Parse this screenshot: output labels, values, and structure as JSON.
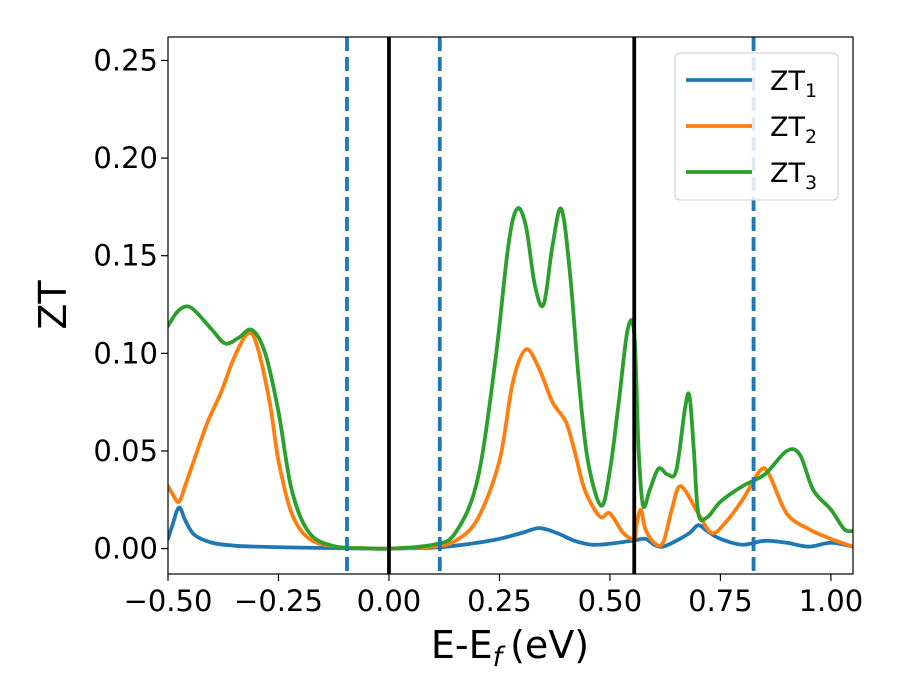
{
  "chart_data": {
    "type": "line",
    "title": "",
    "xlabel": "E-E",
    "xlabel_sub": "f",
    "xlabel_unit": "(eV)",
    "ylabel": "ZT",
    "xlim": [
      -0.5,
      1.05
    ],
    "ylim": [
      -0.013,
      0.262
    ],
    "xticks": [
      -0.5,
      -0.25,
      0.0,
      0.25,
      0.5,
      0.75,
      1.0
    ],
    "xtick_labels": [
      "−0.50",
      "−0.25",
      "0.00",
      "0.25",
      "0.50",
      "0.75",
      "1.00"
    ],
    "yticks": [
      0.0,
      0.05,
      0.1,
      0.15,
      0.2,
      0.25
    ],
    "ytick_labels": [
      "0.00",
      "0.05",
      "0.10",
      "0.15",
      "0.20",
      "0.25"
    ],
    "grid": false,
    "legend_position": "upper right",
    "vertical_lines": [
      {
        "x": -0.095,
        "style": "dashed",
        "color": "#1f77b4"
      },
      {
        "x": 0.0,
        "style": "solid",
        "color": "#000000"
      },
      {
        "x": 0.115,
        "style": "dashed",
        "color": "#1f77b4"
      },
      {
        "x": 0.555,
        "style": "solid",
        "color": "#000000"
      },
      {
        "x": 0.825,
        "style": "dashed",
        "color": "#1f77b4"
      }
    ],
    "series": [
      {
        "name": "ZT",
        "name_sub": "1",
        "color": "#1f77b4",
        "x": [
          -0.5,
          -0.49,
          -0.475,
          -0.46,
          -0.44,
          -0.4,
          -0.35,
          -0.3,
          -0.2,
          -0.1,
          0.0,
          0.1,
          0.15,
          0.2,
          0.25,
          0.3,
          0.34,
          0.38,
          0.42,
          0.46,
          0.5,
          0.55,
          0.58,
          0.6,
          0.62,
          0.65,
          0.68,
          0.7,
          0.72,
          0.75,
          0.8,
          0.85,
          0.9,
          0.95,
          1.0,
          1.05
        ],
        "y": [
          0.005,
          0.012,
          0.021,
          0.014,
          0.007,
          0.003,
          0.0015,
          0.001,
          0.0005,
          0.0002,
          0.0,
          0.0005,
          0.0015,
          0.003,
          0.005,
          0.008,
          0.0105,
          0.008,
          0.004,
          0.002,
          0.0025,
          0.004,
          0.005,
          0.002,
          0.001,
          0.004,
          0.008,
          0.012,
          0.009,
          0.005,
          0.002,
          0.004,
          0.003,
          0.001,
          0.003,
          0.001
        ]
      },
      {
        "name": "ZT",
        "name_sub": "2",
        "color": "#ff7f0e",
        "x": [
          -0.5,
          -0.49,
          -0.475,
          -0.46,
          -0.44,
          -0.41,
          -0.38,
          -0.35,
          -0.32,
          -0.3,
          -0.27,
          -0.25,
          -0.22,
          -0.18,
          -0.12,
          -0.05,
          0.0,
          0.1,
          0.15,
          0.2,
          0.25,
          0.28,
          0.31,
          0.34,
          0.37,
          0.4,
          0.42,
          0.44,
          0.46,
          0.48,
          0.5,
          0.53,
          0.555,
          0.56,
          0.57,
          0.58,
          0.6,
          0.62,
          0.64,
          0.66,
          0.7,
          0.73,
          0.76,
          0.8,
          0.84,
          0.86,
          0.9,
          0.95,
          1.0,
          1.05
        ],
        "y": [
          0.032,
          0.028,
          0.024,
          0.033,
          0.046,
          0.065,
          0.08,
          0.098,
          0.11,
          0.105,
          0.075,
          0.045,
          0.018,
          0.005,
          0.001,
          0.0002,
          0.0,
          0.001,
          0.004,
          0.015,
          0.045,
          0.085,
          0.102,
          0.092,
          0.075,
          0.065,
          0.05,
          0.032,
          0.022,
          0.016,
          0.018,
          0.008,
          0.005,
          0.012,
          0.02,
          0.01,
          0.003,
          0.003,
          0.02,
          0.032,
          0.018,
          0.008,
          0.013,
          0.025,
          0.04,
          0.038,
          0.018,
          0.01,
          0.005,
          0.001
        ]
      },
      {
        "name": "ZT",
        "name_sub": "3",
        "color": "#2ca02c",
        "x": [
          -0.5,
          -0.48,
          -0.46,
          -0.44,
          -0.4,
          -0.37,
          -0.34,
          -0.31,
          -0.28,
          -0.25,
          -0.22,
          -0.18,
          -0.12,
          -0.05,
          0.0,
          0.1,
          0.15,
          0.2,
          0.24,
          0.27,
          0.29,
          0.31,
          0.33,
          0.35,
          0.37,
          0.39,
          0.41,
          0.43,
          0.45,
          0.48,
          0.5,
          0.52,
          0.54,
          0.555,
          0.565,
          0.575,
          0.59,
          0.61,
          0.63,
          0.65,
          0.67,
          0.68,
          0.69,
          0.7,
          0.72,
          0.75,
          0.8,
          0.85,
          0.9,
          0.93,
          0.96,
          1.0,
          1.03,
          1.05
        ],
        "y": [
          0.114,
          0.121,
          0.124,
          0.122,
          0.112,
          0.105,
          0.108,
          0.112,
          0.1,
          0.07,
          0.03,
          0.008,
          0.001,
          0.0002,
          0.0,
          0.002,
          0.008,
          0.035,
          0.095,
          0.155,
          0.174,
          0.165,
          0.135,
          0.125,
          0.155,
          0.174,
          0.14,
          0.085,
          0.045,
          0.022,
          0.04,
          0.075,
          0.112,
          0.11,
          0.05,
          0.022,
          0.03,
          0.041,
          0.038,
          0.04,
          0.072,
          0.078,
          0.05,
          0.018,
          0.016,
          0.024,
          0.032,
          0.038,
          0.05,
          0.048,
          0.03,
          0.02,
          0.01,
          0.009
        ]
      }
    ]
  }
}
